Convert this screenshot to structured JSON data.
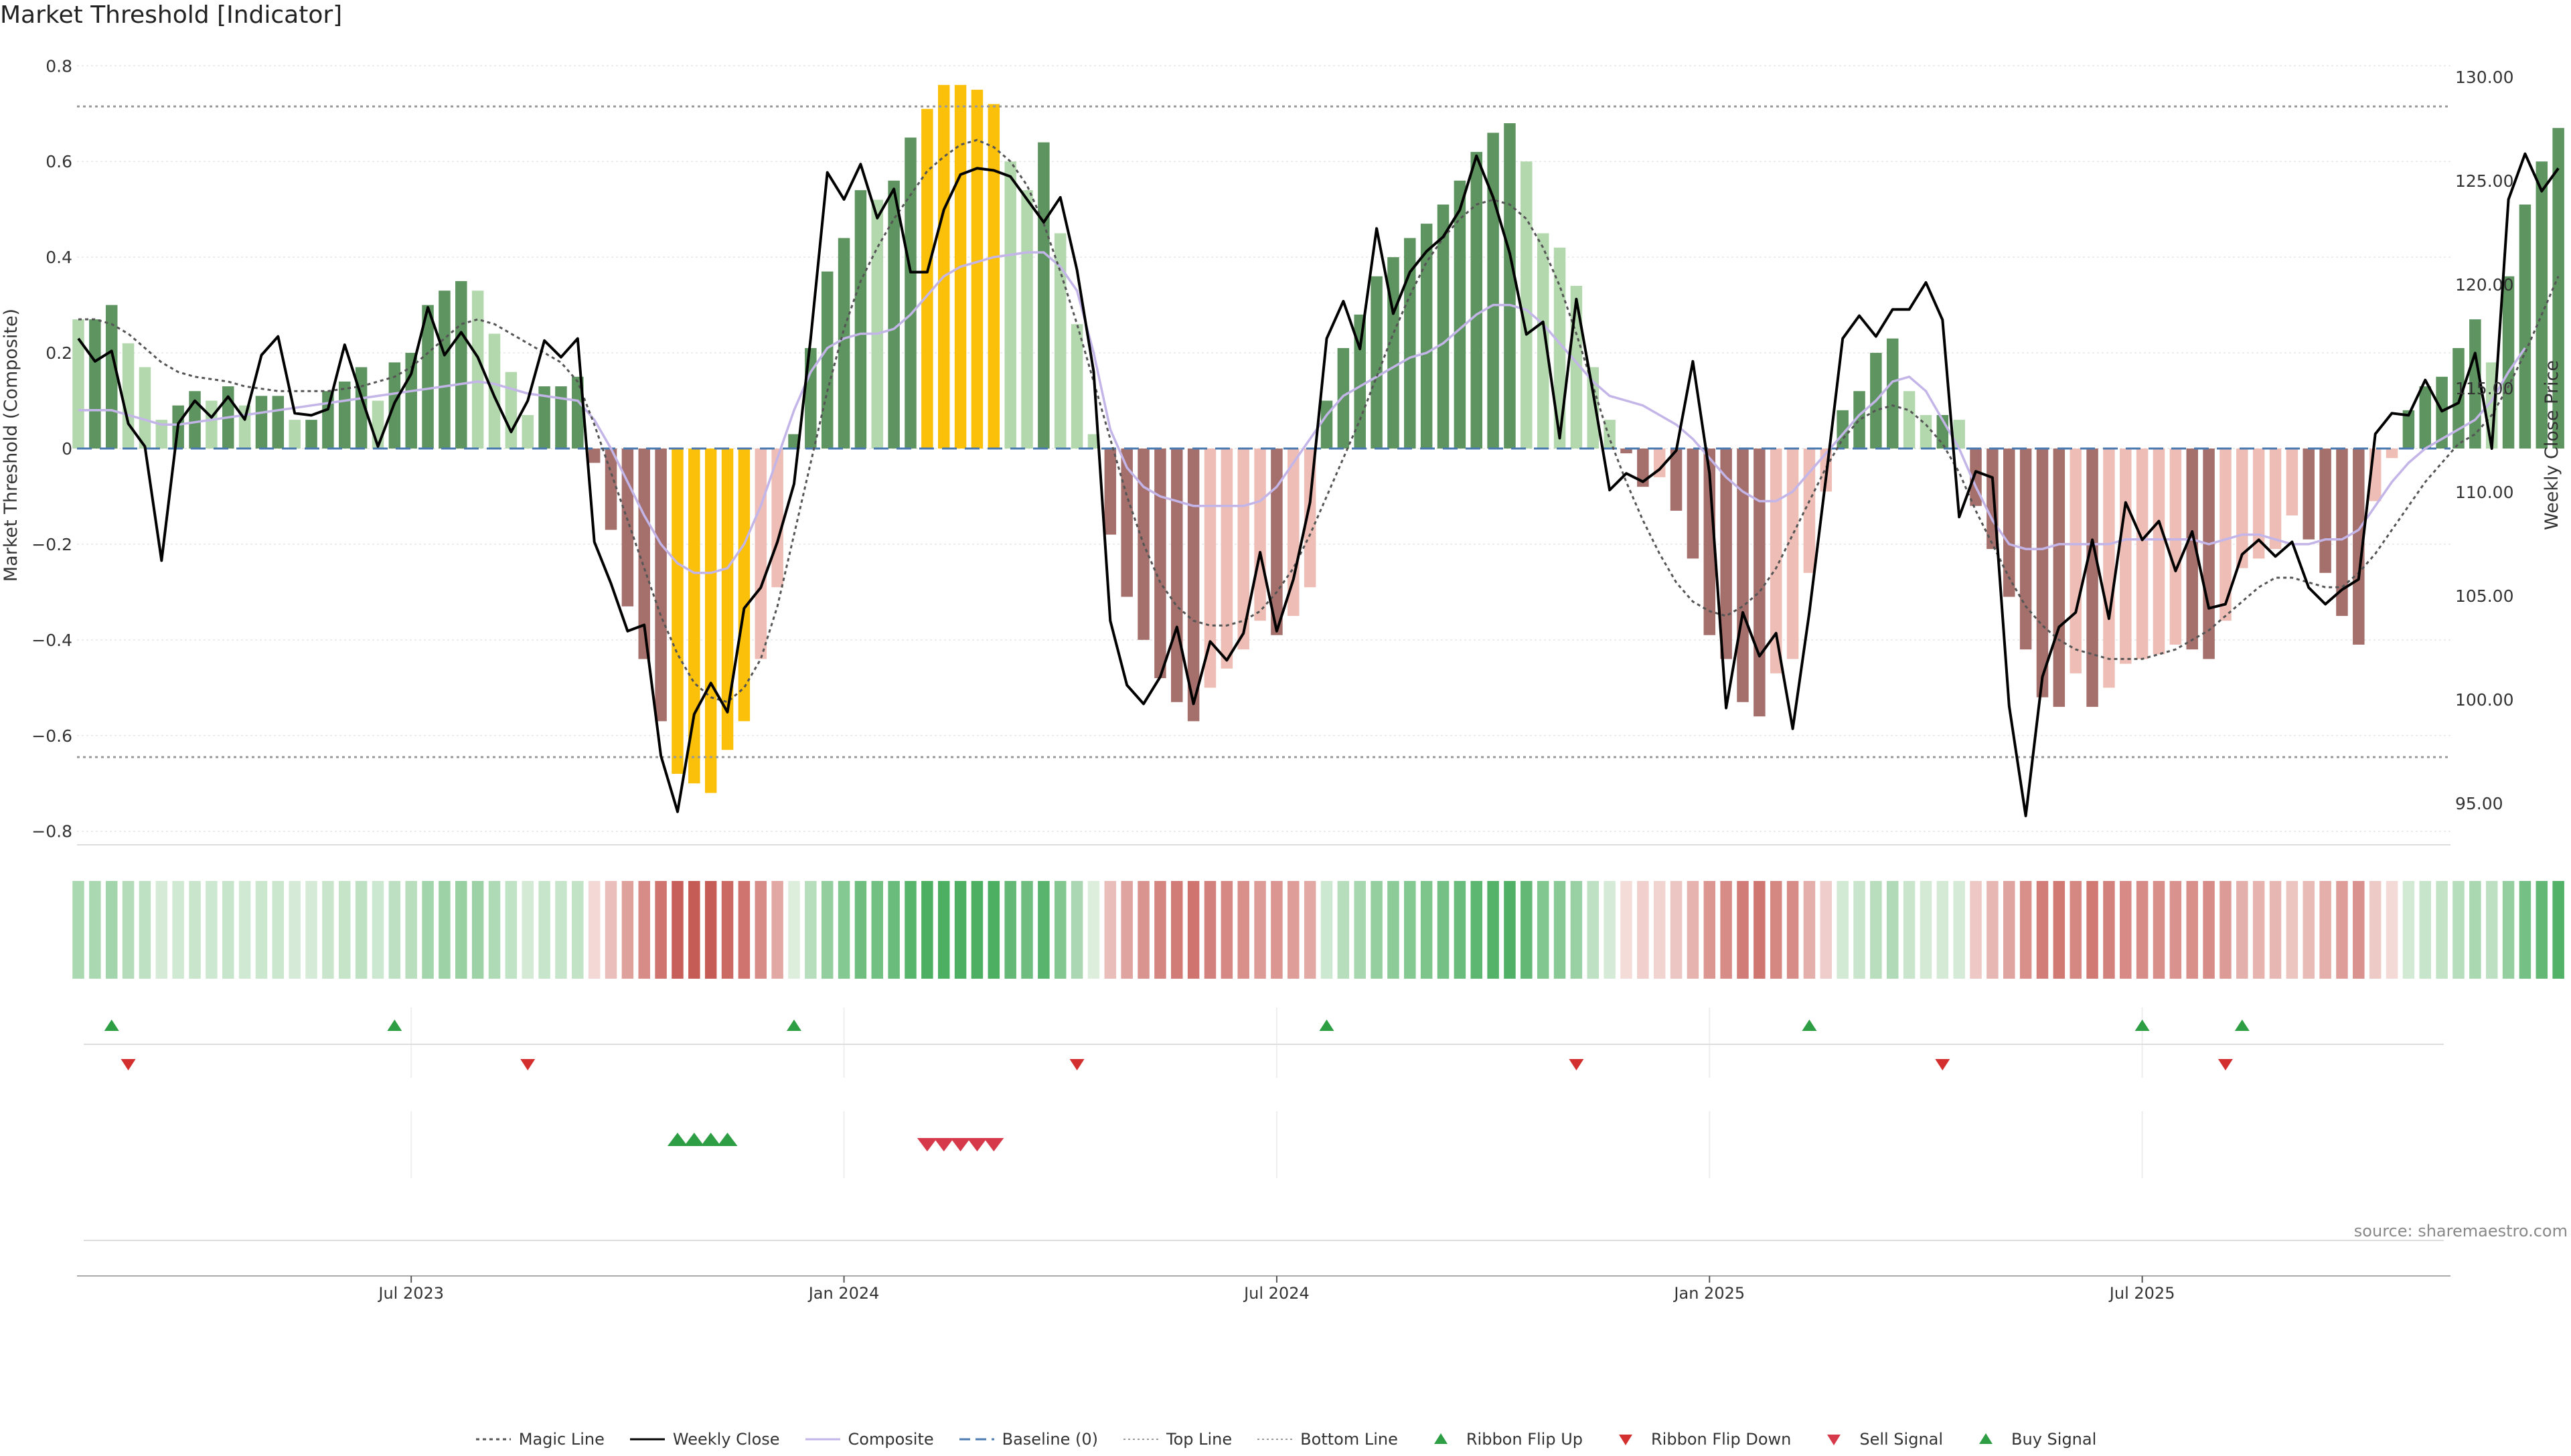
{
  "title": "Market Threshold [Indicator]",
  "source": "source: sharemaestro.com",
  "chart_data": {
    "type": "bar",
    "left_axis": {
      "label": "Market Threshold (Composite)",
      "ylim": [
        -0.82,
        0.82
      ],
      "ticks": [
        0.8,
        0.6,
        0.4,
        0.2,
        0,
        -0.2,
        -0.4,
        -0.6,
        -0.8
      ],
      "tick_labels": [
        "0.8",
        "0.6",
        "0.4",
        "0.2",
        "0",
        "−0.2",
        "−0.4",
        "−0.6",
        "−0.8"
      ]
    },
    "right_axis": {
      "label": "Weekly Close Price",
      "ylim": [
        93.2,
        131.0
      ],
      "ticks": [
        130,
        125,
        120,
        115,
        110,
        105,
        100,
        95
      ],
      "tick_labels": [
        "130.00",
        "125.00",
        "120.00",
        "115.00",
        "110.00",
        "105.00",
        "100.00",
        "95.00"
      ]
    },
    "x_axis": {
      "tick_week_index": [
        20,
        46,
        72,
        98,
        124
      ],
      "tick_labels": [
        "Jul 2023",
        "Jan 2024",
        "Jul 2024",
        "Jan 2025",
        "Jul 2025"
      ]
    },
    "top_line": 0.715,
    "bottom_line": -0.645,
    "baseline": 0,
    "series": [
      {
        "name": "Composite bars (weekly)",
        "values": [
          0.27,
          0.27,
          0.3,
          0.22,
          0.17,
          0.06,
          0.09,
          0.12,
          0.1,
          0.13,
          0.09,
          0.11,
          0.11,
          0.06,
          0.06,
          0.12,
          0.14,
          0.17,
          0.1,
          0.18,
          0.2,
          0.3,
          0.33,
          0.35,
          0.33,
          0.24,
          0.16,
          0.07,
          0.13,
          0.13,
          0.15,
          -0.03,
          -0.17,
          -0.33,
          -0.44,
          -0.57,
          -0.68,
          -0.7,
          -0.72,
          -0.63,
          -0.57,
          -0.44,
          -0.29,
          0.03,
          0.21,
          0.37,
          0.44,
          0.54,
          0.52,
          0.56,
          0.65,
          0.71,
          0.76,
          0.76,
          0.75,
          0.72,
          0.6,
          0.54,
          0.64,
          0.45,
          0.26,
          0.03,
          -0.18,
          -0.31,
          -0.4,
          -0.48,
          -0.53,
          -0.57,
          -0.5,
          -0.46,
          -0.42,
          -0.36,
          -0.39,
          -0.35,
          -0.29,
          0.1,
          0.21,
          0.28,
          0.36,
          0.4,
          0.44,
          0.47,
          0.51,
          0.56,
          0.62,
          0.66,
          0.68,
          0.6,
          0.45,
          0.42,
          0.34,
          0.17,
          0.06,
          -0.01,
          -0.08,
          -0.06,
          -0.13,
          -0.23,
          -0.39,
          -0.44,
          -0.53,
          -0.56,
          -0.47,
          -0.44,
          -0.26,
          -0.09,
          0.08,
          0.12,
          0.2,
          0.23,
          0.12,
          0.07,
          0.07,
          0.06,
          -0.12,
          -0.21,
          -0.31,
          -0.42,
          -0.52,
          -0.54,
          -0.47,
          -0.54,
          -0.5,
          -0.45,
          -0.44,
          -0.43,
          -0.41,
          -0.42,
          -0.44,
          -0.36,
          -0.25,
          -0.23,
          -0.21,
          -0.14,
          -0.19,
          -0.26,
          -0.35,
          -0.41,
          -0.11,
          -0.02,
          0.08,
          0.13,
          0.15,
          0.21,
          0.27,
          0.18,
          0.36,
          0.51,
          0.6,
          0.67
        ]
      },
      {
        "name": "Weekly Close",
        "values": [
          117.4,
          116.3,
          116.8,
          113.3,
          112.2,
          106.7,
          113.3,
          114.4,
          113.6,
          114.6,
          113.5,
          116.6,
          117.5,
          113.8,
          113.7,
          114,
          117.1,
          114.6,
          112.2,
          114.3,
          115.7,
          118.9,
          116.6,
          117.7,
          116.5,
          114.6,
          112.9,
          114.4,
          117.3,
          116.5,
          117.4,
          107.6,
          105.6,
          103.3,
          103.6,
          97.3,
          94.6,
          99.3,
          100.8,
          99.4,
          104.4,
          105.4,
          107.6,
          110.4,
          117.4,
          125.4,
          124.1,
          125.8,
          123.2,
          124.6,
          120.6,
          120.6,
          123.6,
          125.3,
          125.6,
          125.5,
          125.2,
          124.1,
          123,
          124.2,
          120.7,
          115.8,
          103.8,
          100.7,
          99.8,
          101.1,
          103.5,
          99.8,
          102.8,
          101.9,
          103.2,
          107.1,
          103.3,
          105.8,
          109.5,
          117.4,
          119.2,
          116.9,
          122.7,
          118.6,
          120.6,
          121.6,
          122.3,
          123.6,
          126.2,
          124.2,
          121.5,
          117.6,
          118.2,
          112.6,
          119.3,
          114.8,
          110.1,
          110.9,
          110.5,
          111.1,
          112,
          116.3,
          110.9,
          99.6,
          104.2,
          102.1,
          103.2,
          98.6,
          104.2,
          110.7,
          117.4,
          118.5,
          117.5,
          118.8,
          118.8,
          120.1,
          118.3,
          108.8,
          111,
          110.7,
          99.7,
          94.4,
          101.1,
          103.5,
          104.2,
          107.7,
          103.9,
          109.5,
          107.7,
          108.6,
          106.2,
          108.1,
          104.4,
          104.6,
          107,
          107.7,
          106.9,
          107.6,
          105.4,
          104.6,
          105.3,
          105.8,
          112.8,
          113.8,
          113.7,
          115.4,
          113.9,
          114.3,
          116.7,
          112.1,
          124.1,
          126.3,
          124.5,
          125.6
        ]
      },
      {
        "name": "Magic Line",
        "values": [
          0.27,
          0.27,
          0.26,
          0.24,
          0.21,
          0.18,
          0.16,
          0.15,
          0.145,
          0.14,
          0.13,
          0.125,
          0.12,
          0.12,
          0.12,
          0.12,
          0.125,
          0.13,
          0.14,
          0.15,
          0.17,
          0.2,
          0.23,
          0.26,
          0.27,
          0.26,
          0.24,
          0.22,
          0.2,
          0.18,
          0.14,
          0.05,
          -0.05,
          -0.15,
          -0.25,
          -0.35,
          -0.43,
          -0.49,
          -0.52,
          -0.53,
          -0.5,
          -0.44,
          -0.33,
          -0.18,
          -0.03,
          0.12,
          0.25,
          0.35,
          0.42,
          0.48,
          0.53,
          0.58,
          0.61,
          0.635,
          0.645,
          0.63,
          0.6,
          0.55,
          0.47,
          0.37,
          0.26,
          0.14,
          0.02,
          -0.1,
          -0.2,
          -0.28,
          -0.33,
          -0.36,
          -0.37,
          -0.37,
          -0.36,
          -0.34,
          -0.3,
          -0.25,
          -0.18,
          -0.1,
          -0.02,
          0.06,
          0.15,
          0.24,
          0.32,
          0.39,
          0.44,
          0.48,
          0.51,
          0.52,
          0.51,
          0.48,
          0.42,
          0.34,
          0.24,
          0.13,
          0.02,
          -0.07,
          -0.15,
          -0.22,
          -0.28,
          -0.32,
          -0.34,
          -0.35,
          -0.33,
          -0.3,
          -0.25,
          -0.18,
          -0.11,
          -0.04,
          0.02,
          0.06,
          0.08,
          0.09,
          0.08,
          0.05,
          0.01,
          -0.05,
          -0.13,
          -0.2,
          -0.27,
          -0.33,
          -0.37,
          -0.4,
          -0.42,
          -0.43,
          -0.44,
          -0.44,
          -0.44,
          -0.43,
          -0.42,
          -0.4,
          -0.38,
          -0.35,
          -0.32,
          -0.29,
          -0.27,
          -0.27,
          -0.28,
          -0.29,
          -0.29,
          -0.26,
          -0.22,
          -0.17,
          -0.12,
          -0.07,
          -0.03,
          0.01,
          0.03,
          0.07,
          0.13,
          0.2,
          0.28,
          0.36
        ]
      },
      {
        "name": "Composite",
        "values": [
          0.08,
          0.08,
          0.08,
          0.07,
          0.06,
          0.05,
          0.05,
          0.055,
          0.06,
          0.065,
          0.07,
          0.075,
          0.08,
          0.085,
          0.09,
          0.095,
          0.1,
          0.105,
          0.11,
          0.115,
          0.12,
          0.125,
          0.13,
          0.135,
          0.14,
          0.135,
          0.125,
          0.115,
          0.11,
          0.105,
          0.1,
          0.06,
          0,
          -0.07,
          -0.14,
          -0.2,
          -0.24,
          -0.26,
          -0.26,
          -0.25,
          -0.2,
          -0.12,
          -0.02,
          0.08,
          0.16,
          0.21,
          0.23,
          0.24,
          0.24,
          0.25,
          0.28,
          0.32,
          0.36,
          0.38,
          0.39,
          0.4,
          0.405,
          0.41,
          0.41,
          0.38,
          0.33,
          0.2,
          0.04,
          -0.04,
          -0.08,
          -0.1,
          -0.11,
          -0.12,
          -0.12,
          -0.12,
          -0.12,
          -0.11,
          -0.08,
          -0.03,
          0.02,
          0.07,
          0.11,
          0.13,
          0.15,
          0.17,
          0.19,
          0.2,
          0.22,
          0.25,
          0.28,
          0.3,
          0.3,
          0.29,
          0.26,
          0.22,
          0.18,
          0.14,
          0.11,
          0.1,
          0.09,
          0.07,
          0.05,
          0.02,
          -0.02,
          -0.06,
          -0.09,
          -0.11,
          -0.11,
          -0.09,
          -0.05,
          -0.01,
          0.03,
          0.07,
          0.1,
          0.14,
          0.15,
          0.12,
          0.06,
          0,
          -0.08,
          -0.15,
          -0.2,
          -0.21,
          -0.21,
          -0.2,
          -0.2,
          -0.2,
          -0.2,
          -0.19,
          -0.19,
          -0.19,
          -0.19,
          -0.19,
          -0.2,
          -0.19,
          -0.18,
          -0.18,
          -0.19,
          -0.2,
          -0.2,
          -0.19,
          -0.19,
          -0.17,
          -0.12,
          -0.07,
          -0.03,
          0,
          0.02,
          0.04,
          0.06,
          0.1,
          0.16,
          0.21
        ]
      },
      {
        "name": "Ribbon Flip Up",
        "weeks": [
          2,
          19,
          43,
          75,
          104,
          124,
          130
        ]
      },
      {
        "name": "Ribbon Flip Down",
        "weeks": [
          3,
          27,
          60,
          90,
          112,
          129
        ]
      },
      {
        "name": "Buy Signal",
        "weeks": [
          36,
          37,
          38,
          39
        ]
      },
      {
        "name": "Sell Signal",
        "weeks": [
          51,
          52,
          53,
          54,
          55
        ]
      }
    ],
    "legend": [
      {
        "label": "Magic Line",
        "symbol": "dotted-line",
        "color": "#555555"
      },
      {
        "label": "Weekly Close",
        "symbol": "solid-line",
        "color": "#000000"
      },
      {
        "label": "Composite",
        "symbol": "solid-line",
        "color": "#c3b5e8"
      },
      {
        "label": "Baseline (0)",
        "symbol": "dashed-line",
        "color": "#4a7ab0"
      },
      {
        "label": "Top Line",
        "symbol": "fine-dotted-line",
        "color": "#999999"
      },
      {
        "label": "Bottom Line",
        "symbol": "fine-dotted-line",
        "color": "#999999"
      },
      {
        "label": "Ribbon Flip Up",
        "symbol": "triangle-up",
        "color": "#2e9e44"
      },
      {
        "label": "Ribbon Flip Down",
        "symbol": "triangle-down",
        "color": "#d32f2f"
      },
      {
        "label": "Sell Signal",
        "symbol": "triangle-down",
        "color": "#d63a4a"
      },
      {
        "label": "Buy Signal",
        "symbol": "triangle-up",
        "color": "#2e9e44"
      }
    ],
    "colors": {
      "pos_strong": "#5e9460",
      "pos_weak": "#b3d8ae",
      "neg_strong": "#a5706c",
      "neg_weak": "#eebeb6",
      "extreme": "#fbc00a",
      "ribbon_pos": "#4caf62",
      "ribbon_neg": "#c65c56"
    }
  }
}
